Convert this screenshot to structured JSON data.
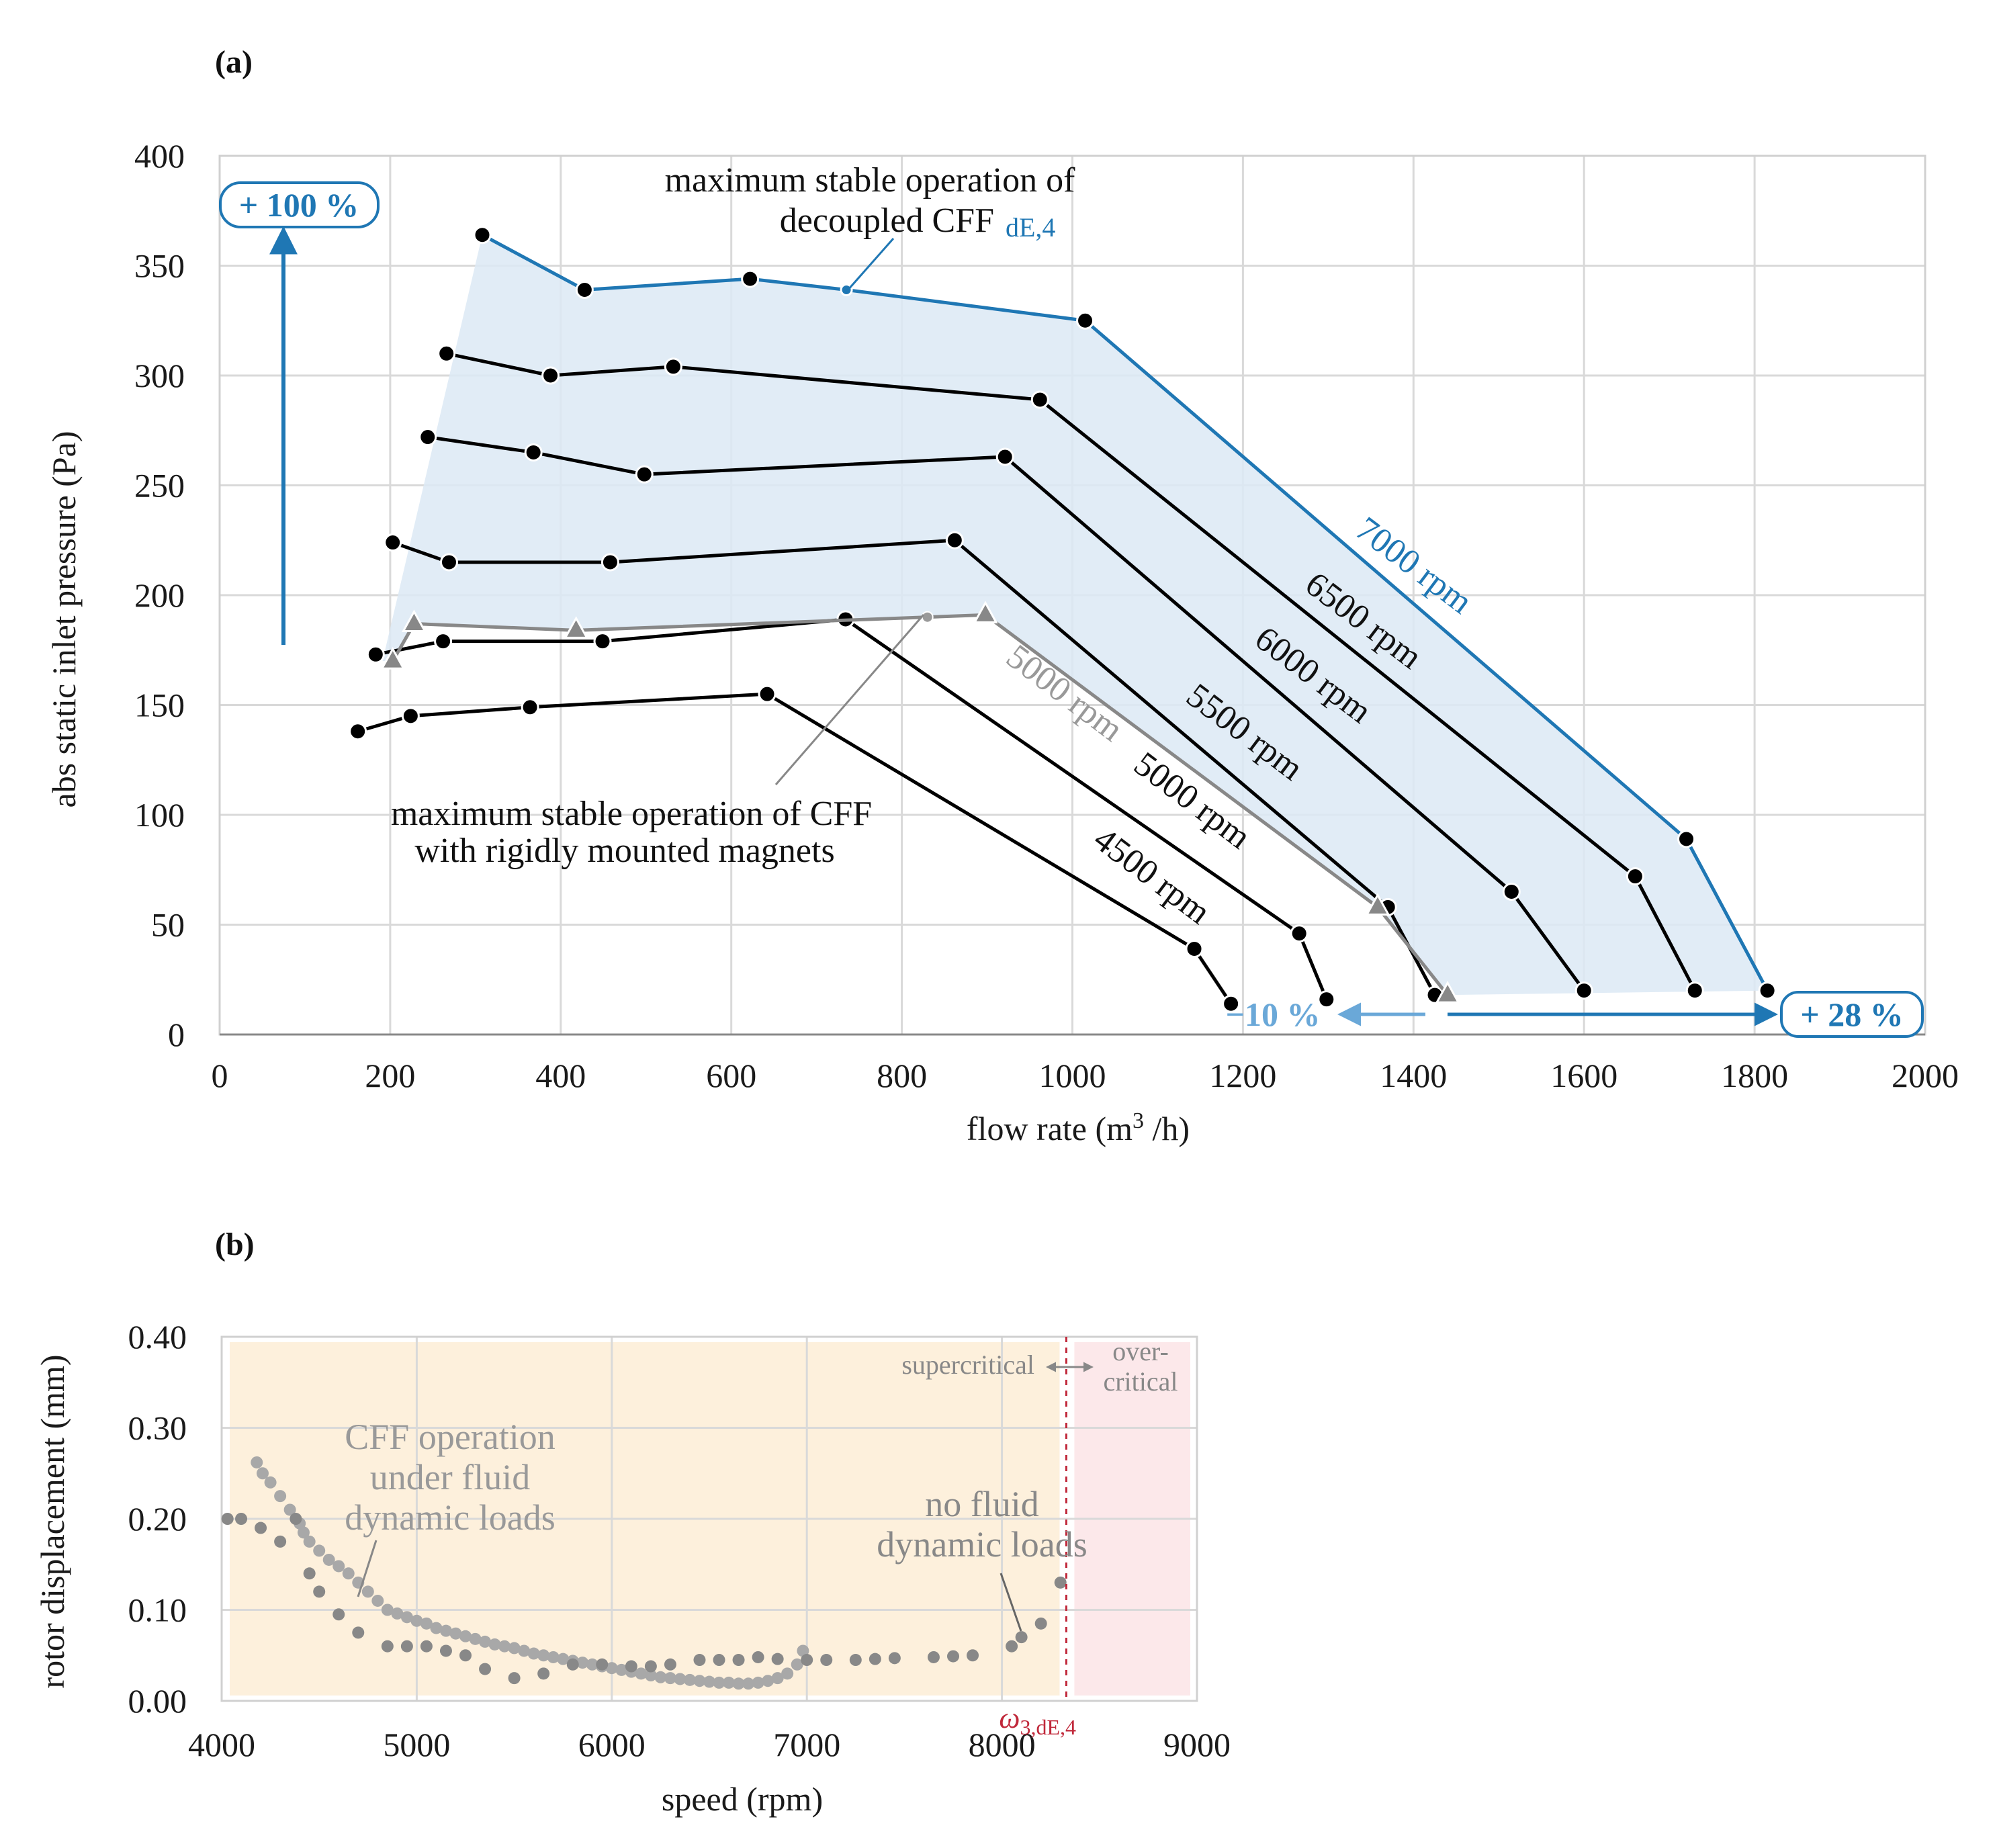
{
  "chart_data": [
    {
      "panel": "(a)",
      "type": "line",
      "xlabel": "flow rate (m³/h)",
      "ylabel": "abs static inlet pressure (Pa)",
      "xlim": [
        0,
        2000
      ],
      "ylim": [
        0,
        400
      ],
      "xticks": [
        0,
        200,
        400,
        600,
        800,
        1000,
        1200,
        1400,
        1600,
        1800,
        2000
      ],
      "yticks": [
        0,
        50,
        100,
        150,
        200,
        250,
        300,
        350,
        400
      ],
      "grid": true,
      "series": [
        {
          "name": "7000 rpm",
          "color": "#1f77b4",
          "points": [
            [
              308,
              364
            ],
            [
              428,
              339
            ],
            [
              622,
              344
            ],
            [
              735,
              339
            ],
            [
              1015,
              325
            ],
            [
              1720,
              89
            ],
            [
              1815,
              20
            ]
          ]
        },
        {
          "name": "6500 rpm",
          "color": "#000000",
          "points": [
            [
              266,
              310
            ],
            [
              388,
              300
            ],
            [
              532,
              304
            ],
            [
              962,
              289
            ],
            [
              1660,
              72
            ],
            [
              1730,
              20
            ]
          ]
        },
        {
          "name": "6000 rpm",
          "color": "#000000",
          "points": [
            [
              244,
              272
            ],
            [
              368,
              265
            ],
            [
              498,
              255
            ],
            [
              921,
              263
            ],
            [
              1515,
              65
            ],
            [
              1600,
              20
            ]
          ]
        },
        {
          "name": "5500 rpm",
          "color": "#000000",
          "points": [
            [
              203,
              224
            ],
            [
              269,
              215
            ],
            [
              458,
              215
            ],
            [
              862,
              225
            ],
            [
              1370,
              58
            ],
            [
              1425,
              18
            ]
          ]
        },
        {
          "name": "5000 rpm",
          "color": "#000000",
          "points": [
            [
              183,
              173
            ],
            [
              262,
              179
            ],
            [
              449,
              179
            ],
            [
              734,
              189
            ],
            [
              1266,
              46
            ],
            [
              1298,
              16
            ]
          ]
        },
        {
          "name": "4500 rpm",
          "color": "#000000",
          "points": [
            [
              162,
              138
            ],
            [
              224,
              145
            ],
            [
              364,
              149
            ],
            [
              642,
              155
            ],
            [
              1143,
              39
            ],
            [
              1186,
              14
            ]
          ]
        },
        {
          "name": "5000 rpm",
          "color": "#888888",
          "marker": "triangle",
          "points": [
            [
              203,
              170
            ],
            [
              228,
              187
            ],
            [
              418,
              184
            ],
            [
              898,
              191
            ],
            [
              1358,
              58
            ],
            [
              1440,
              18
            ]
          ]
        }
      ],
      "annotations": {
        "top_label_1": "maximum stable operation of",
        "top_label_2": "decoupled CFF",
        "top_label_sub": "dE,4",
        "bottom_label_1": "maximum stable operation of CFF",
        "bottom_label_2": "with rigidly mounted magnets",
        "pressure_gain": "+ 100 %",
        "flow_gain": "+ 28 %",
        "flow_loss": "−10 %"
      }
    },
    {
      "panel": "(b)",
      "type": "scatter",
      "xlabel": "speed (rpm)",
      "ylabel": "rotor displacement (mm)",
      "xlim": [
        4000,
        9000
      ],
      "ylim": [
        0,
        0.4
      ],
      "xticks": [
        4000,
        5000,
        6000,
        7000,
        8000,
        9000
      ],
      "yticks": [
        "0.00",
        "0.10",
        "0.20",
        "0.30",
        "0.40"
      ],
      "critical_speed": 8330,
      "critical_label": "ω",
      "critical_label_sub": "3,dE,4",
      "regions": [
        {
          "name": "supercritical",
          "from": 4000,
          "to": 8330,
          "color": "#fdf0dc"
        },
        {
          "name": "over-critical",
          "from": 8330,
          "to": 9000,
          "color": "#fce8ea"
        }
      ],
      "region_label_1": "supercritical",
      "region_label_2a": "over-",
      "region_label_2b": "critical",
      "annot_1": [
        "CFF operation",
        "under fluid",
        "dynamic loads"
      ],
      "annot_2": [
        "no fluid",
        "dynamic loads"
      ],
      "series": [
        {
          "name": "CFF operation under fluid dynamic loads",
          "color": "#a8a8a8",
          "points": [
            [
              4180,
              0.262
            ],
            [
              4210,
              0.25
            ],
            [
              4250,
              0.24
            ],
            [
              4300,
              0.225
            ],
            [
              4350,
              0.21
            ],
            [
              4400,
              0.195
            ],
            [
              4420,
              0.185
            ],
            [
              4450,
              0.175
            ],
            [
              4500,
              0.165
            ],
            [
              4550,
              0.155
            ],
            [
              4600,
              0.148
            ],
            [
              4650,
              0.14
            ],
            [
              4700,
              0.13
            ],
            [
              4750,
              0.12
            ],
            [
              4800,
              0.11
            ],
            [
              4850,
              0.1
            ],
            [
              4900,
              0.096
            ],
            [
              4950,
              0.092
            ],
            [
              5000,
              0.088
            ],
            [
              5050,
              0.085
            ],
            [
              5100,
              0.08
            ],
            [
              5150,
              0.077
            ],
            [
              5200,
              0.074
            ],
            [
              5250,
              0.071
            ],
            [
              5300,
              0.068
            ],
            [
              5350,
              0.065
            ],
            [
              5400,
              0.062
            ],
            [
              5450,
              0.06
            ],
            [
              5500,
              0.058
            ],
            [
              5550,
              0.055
            ],
            [
              5600,
              0.052
            ],
            [
              5650,
              0.05
            ],
            [
              5700,
              0.048
            ],
            [
              5750,
              0.046
            ],
            [
              5800,
              0.044
            ],
            [
              5850,
              0.042
            ],
            [
              5900,
              0.04
            ],
            [
              5950,
              0.038
            ],
            [
              6000,
              0.036
            ],
            [
              6050,
              0.034
            ],
            [
              6100,
              0.032
            ],
            [
              6150,
              0.03
            ],
            [
              6200,
              0.028
            ],
            [
              6250,
              0.026
            ],
            [
              6300,
              0.025
            ],
            [
              6350,
              0.024
            ],
            [
              6400,
              0.023
            ],
            [
              6450,
              0.022
            ],
            [
              6500,
              0.021
            ],
            [
              6550,
              0.02
            ],
            [
              6600,
              0.02
            ],
            [
              6650,
              0.019
            ],
            [
              6700,
              0.019
            ],
            [
              6750,
              0.02
            ],
            [
              6800,
              0.022
            ],
            [
              6850,
              0.025
            ],
            [
              6900,
              0.03
            ],
            [
              6950,
              0.04
            ],
            [
              6980,
              0.055
            ]
          ]
        },
        {
          "name": "no fluid dynamic loads",
          "color": "#888888",
          "points": [
            [
              4030,
              0.2
            ],
            [
              4100,
              0.2
            ],
            [
              4200,
              0.19
            ],
            [
              4300,
              0.175
            ],
            [
              4380,
              0.2
            ],
            [
              4450,
              0.14
            ],
            [
              4500,
              0.12
            ],
            [
              4600,
              0.095
            ],
            [
              4700,
              0.075
            ],
            [
              4850,
              0.06
            ],
            [
              4950,
              0.06
            ],
            [
              5050,
              0.06
            ],
            [
              5150,
              0.055
            ],
            [
              5250,
              0.05
            ],
            [
              5350,
              0.035
            ],
            [
              5500,
              0.025
            ],
            [
              5650,
              0.03
            ],
            [
              5800,
              0.04
            ],
            [
              5950,
              0.04
            ],
            [
              6100,
              0.038
            ],
            [
              6200,
              0.038
            ],
            [
              6300,
              0.04
            ],
            [
              6450,
              0.045
            ],
            [
              6550,
              0.045
            ],
            [
              6650,
              0.045
            ],
            [
              6750,
              0.048
            ],
            [
              6850,
              0.046
            ],
            [
              7000,
              0.045
            ],
            [
              7100,
              0.045
            ],
            [
              7250,
              0.045
            ],
            [
              7350,
              0.046
            ],
            [
              7450,
              0.047
            ],
            [
              7650,
              0.048
            ],
            [
              7750,
              0.049
            ],
            [
              7850,
              0.05
            ],
            [
              8050,
              0.06
            ],
            [
              8100,
              0.07
            ],
            [
              8200,
              0.085
            ],
            [
              8300,
              0.13
            ]
          ]
        }
      ]
    }
  ]
}
